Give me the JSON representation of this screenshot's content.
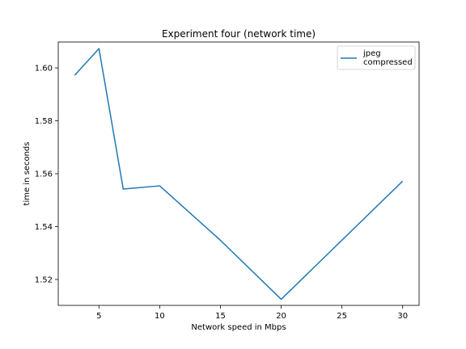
{
  "chart_data": {
    "type": "line",
    "title": "Experiment four (network time)",
    "xlabel": "Network speed in Mbps",
    "ylabel": "time in seconds",
    "x": [
      3,
      5,
      7,
      10,
      15,
      20,
      30
    ],
    "series": [
      {
        "name": "jpeg\ncompressed",
        "name_lines": [
          "jpeg",
          "compressed"
        ],
        "color": "#1f77b4",
        "values": [
          1.5972,
          1.6073,
          1.5542,
          1.5554,
          1.5348,
          1.5125,
          1.5572
        ]
      }
    ],
    "xlim": [
      1.65,
      31.35
    ],
    "ylim": [
      1.5102,
      1.6098
    ],
    "xticks": [
      5,
      10,
      15,
      20,
      25,
      30
    ],
    "xtick_labels": [
      "5",
      "10",
      "15",
      "20",
      "25",
      "30"
    ],
    "yticks": [
      1.52,
      1.54,
      1.56,
      1.58,
      1.6
    ],
    "ytick_labels": [
      "1.52",
      "1.54",
      "1.56",
      "1.58",
      "1.60"
    ],
    "grid": false,
    "legend_position": "top-right"
  }
}
